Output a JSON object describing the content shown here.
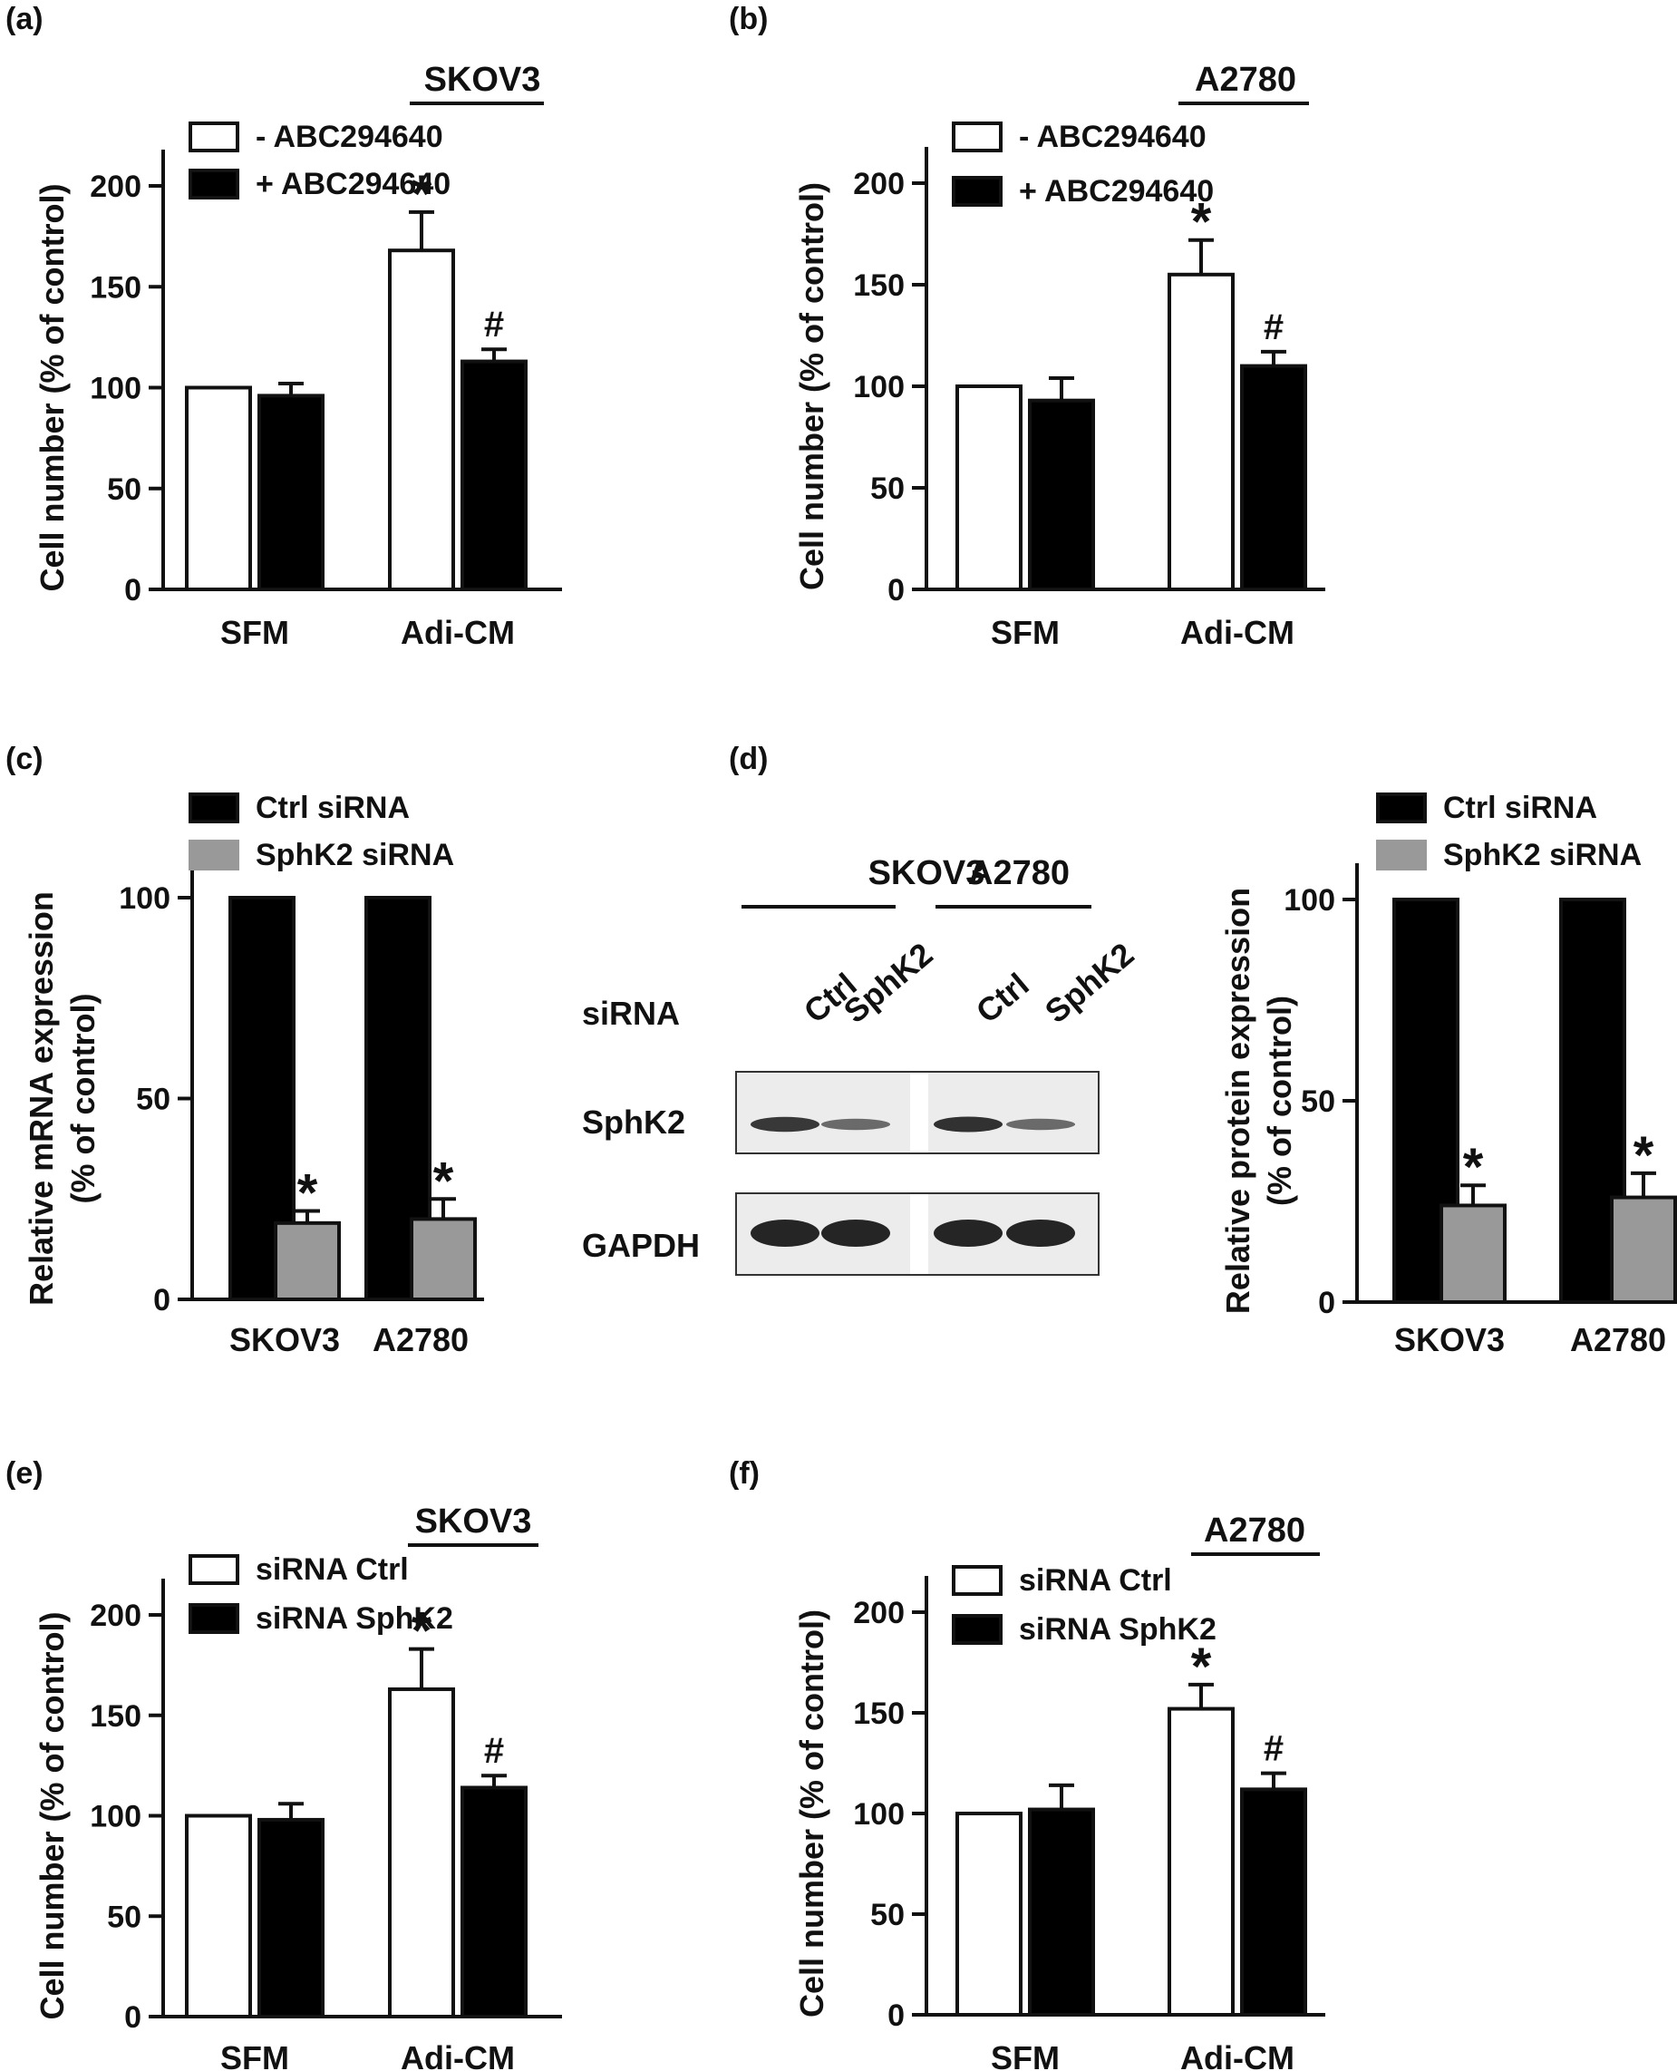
{
  "panel_labels": [
    "(a)",
    "(b)",
    "(c)",
    "(d)",
    "(e)",
    "(f)"
  ],
  "chart_data": [
    {
      "panel": "(a)",
      "type": "bar",
      "title": "SKOV3",
      "ylabel": "Cell number (% of control)",
      "ylim": [
        0,
        200
      ],
      "yticks": [
        0,
        50,
        100,
        150,
        200
      ],
      "categories": [
        "SFM",
        "Adi-CM"
      ],
      "legend": "top-left",
      "series": [
        {
          "name": "- ABC294640",
          "values": [
            100,
            168
          ],
          "errors": [
            0,
            19
          ],
          "fill": "#ffffff"
        },
        {
          "name": "+ ABC294640",
          "values": [
            96,
            113
          ],
          "errors": [
            6,
            6
          ],
          "fill": "#000000"
        }
      ],
      "annotations": [
        {
          "category": 1,
          "series": 0,
          "text": "*"
        },
        {
          "category": 1,
          "series": 1,
          "text": "#"
        }
      ]
    },
    {
      "panel": "(b)",
      "type": "bar",
      "title": "A2780",
      "ylabel": "Cell number (% of control)",
      "ylim": [
        0,
        200
      ],
      "yticks": [
        0,
        50,
        100,
        150,
        200
      ],
      "categories": [
        "SFM",
        "Adi-CM"
      ],
      "legend": "top-left",
      "series": [
        {
          "name": "- ABC294640",
          "values": [
            100,
            155
          ],
          "errors": [
            0,
            17
          ],
          "fill": "#ffffff"
        },
        {
          "name": "+ ABC294640",
          "values": [
            93,
            110
          ],
          "errors": [
            11,
            7
          ],
          "fill": "#000000"
        }
      ],
      "annotations": [
        {
          "category": 1,
          "series": 0,
          "text": "*"
        },
        {
          "category": 1,
          "series": 1,
          "text": "#"
        }
      ]
    },
    {
      "panel": "(c)",
      "type": "bar",
      "ylabel": "Relative mRNA expression\n(% of control)",
      "ylim": [
        0,
        100
      ],
      "yticks": [
        0,
        50,
        100
      ],
      "categories": [
        "SKOV3",
        "A2780"
      ],
      "legend": "top-left",
      "series": [
        {
          "name": "Ctrl siRNA",
          "values": [
            100,
            100
          ],
          "errors": [
            0,
            0
          ],
          "fill": "#000000"
        },
        {
          "name": "SphK2 siRNA",
          "values": [
            19,
            20
          ],
          "errors": [
            3,
            5
          ],
          "fill": "#999999"
        }
      ],
      "annotations": [
        {
          "category": 0,
          "series": 1,
          "text": "*"
        },
        {
          "category": 1,
          "series": 1,
          "text": "*"
        }
      ]
    },
    {
      "panel": "(d)",
      "type": "bar",
      "ylabel": "Relative protein expression\n(% of control)",
      "ylim": [
        0,
        100
      ],
      "yticks": [
        0,
        50,
        100
      ],
      "categories": [
        "SKOV3",
        "A2780"
      ],
      "legend": "top-left",
      "series": [
        {
          "name": "Ctrl siRNA",
          "values": [
            100,
            100
          ],
          "errors": [
            0,
            0
          ],
          "fill": "#000000"
        },
        {
          "name": "SphK2 siRNA",
          "values": [
            24,
            26
          ],
          "errors": [
            5,
            6
          ],
          "fill": "#999999"
        }
      ],
      "annotations": [
        {
          "category": 0,
          "series": 1,
          "text": "*"
        },
        {
          "category": 1,
          "series": 1,
          "text": "*"
        }
      ]
    },
    {
      "panel": "(e)",
      "type": "bar",
      "title": "SKOV3",
      "ylabel": "Cell number (% of control)",
      "ylim": [
        0,
        200
      ],
      "yticks": [
        0,
        50,
        100,
        150,
        200
      ],
      "categories": [
        "SFM",
        "Adi-CM"
      ],
      "legend": "top-left",
      "series": [
        {
          "name": "siRNA Ctrl",
          "values": [
            100,
            163
          ],
          "errors": [
            0,
            20
          ],
          "fill": "#ffffff"
        },
        {
          "name": "siRNA SphK2",
          "values": [
            98,
            114
          ],
          "errors": [
            8,
            6
          ],
          "fill": "#000000"
        }
      ],
      "annotations": [
        {
          "category": 1,
          "series": 0,
          "text": "*"
        },
        {
          "category": 1,
          "series": 1,
          "text": "#"
        }
      ]
    },
    {
      "panel": "(f)",
      "type": "bar",
      "title": "A2780",
      "ylabel": "Cell number (% of control)",
      "ylim": [
        0,
        200
      ],
      "yticks": [
        0,
        50,
        100,
        150,
        200
      ],
      "categories": [
        "SFM",
        "Adi-CM"
      ],
      "legend": "top-left",
      "series": [
        {
          "name": "siRNA Ctrl",
          "values": [
            100,
            152
          ],
          "errors": [
            0,
            12
          ],
          "fill": "#ffffff"
        },
        {
          "name": "siRNA SphK2",
          "values": [
            102,
            112
          ],
          "errors": [
            12,
            8
          ],
          "fill": "#000000"
        }
      ],
      "annotations": [
        {
          "category": 1,
          "series": 0,
          "text": "*"
        },
        {
          "category": 1,
          "series": 1,
          "text": "#"
        }
      ]
    }
  ],
  "western_blot": {
    "cell_lines": [
      "SKOV3",
      "A2780"
    ],
    "row_label_header": "siRNA",
    "lane_labels": [
      "Ctrl",
      "SphK2",
      "Ctrl",
      "SphK2"
    ],
    "rows": [
      {
        "label": "SphK2",
        "intensity": [
          0.85,
          0.45,
          0.9,
          0.45
        ]
      },
      {
        "label": "GAPDH",
        "intensity": [
          1.0,
          1.0,
          1.0,
          1.0
        ]
      }
    ]
  }
}
